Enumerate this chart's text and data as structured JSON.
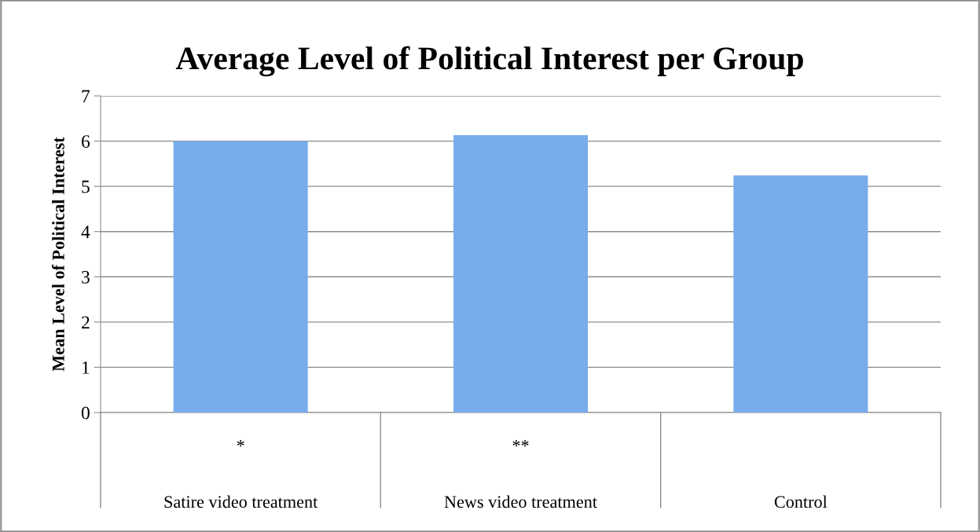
{
  "chart_data": {
    "type": "bar",
    "title": "Average Level of Political Interest per Group",
    "ylabel": "Mean Level of Political Interest",
    "categories": [
      "Satire video treatment",
      "News video treatment",
      "Control"
    ],
    "values": [
      6.0,
      6.13,
      5.24
    ],
    "color": "#78acea",
    "ylim": [
      0,
      7
    ],
    "yticks": [
      0,
      1,
      2,
      3,
      4,
      5,
      6,
      7
    ],
    "grid": "y",
    "legend": false,
    "annotations": [
      "*",
      "**"
    ]
  }
}
